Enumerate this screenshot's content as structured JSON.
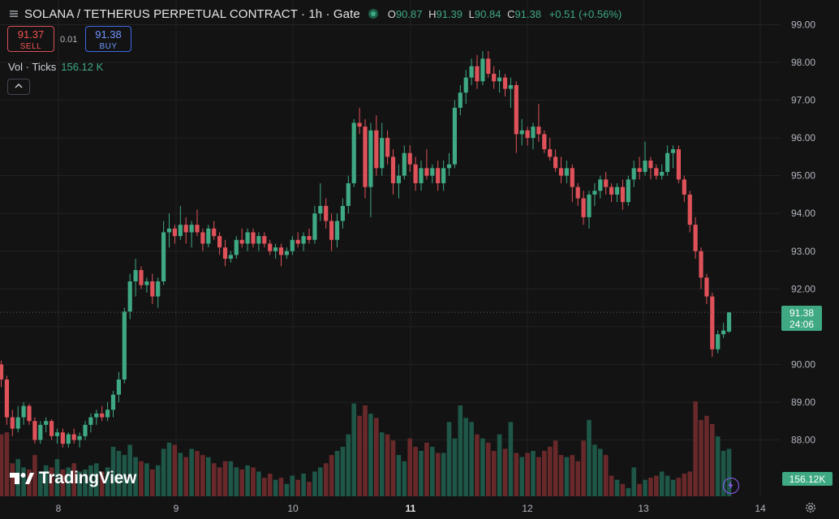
{
  "header": {
    "title": "SOLANA / TETHERUS PERPETUAL CONTRACT · 1h · Gate",
    "ohlc": {
      "o_label": "O",
      "o_value": "90.87",
      "h_label": "H",
      "h_value": "91.39",
      "l_label": "L",
      "l_value": "90.84",
      "c_label": "C",
      "c_value": "91.38",
      "change": "+0.51 (+0.56%)"
    }
  },
  "trade": {
    "sell_price": "91.37",
    "sell_label": "SELL",
    "spread": "0.01",
    "buy_price": "91.38",
    "buy_label": "BUY"
  },
  "volume_legend": {
    "label": "Vol · Ticks",
    "value": "156.12 K"
  },
  "branding": {
    "logo_text": "TradingView"
  },
  "colors": {
    "up": "#3ea983",
    "down": "#e0525a",
    "background": "#131313",
    "grid": "#222222"
  },
  "chart_data": {
    "type": "candlestick",
    "interval": "1h",
    "y_axis": {
      "ticks": [
        88.0,
        89.0,
        90.0,
        91.0,
        92.0,
        93.0,
        94.0,
        95.0,
        96.0,
        97.0,
        98.0,
        99.0
      ],
      "range": [
        87.3,
        99.3
      ],
      "side": "right"
    },
    "x_axis": {
      "ticks": [
        "8",
        "9",
        "10",
        "11",
        "12",
        "13",
        "14"
      ],
      "bold_tick": "11"
    },
    "last_price": {
      "value": 91.38,
      "label": "91.38",
      "countdown": "24:06"
    },
    "volume": {
      "last_label": "156.12K",
      "max_value": 330
    },
    "candles": [
      [
        90.0,
        90.1,
        89.4,
        89.6
      ],
      [
        89.6,
        89.7,
        88.4,
        88.6
      ],
      [
        88.6,
        88.8,
        88.1,
        88.3
      ],
      [
        88.3,
        88.9,
        88.2,
        88.6
      ],
      [
        88.6,
        89.0,
        88.4,
        88.9
      ],
      [
        88.9,
        88.95,
        88.4,
        88.5
      ],
      [
        88.5,
        88.6,
        87.9,
        88.0
      ],
      [
        88.0,
        88.5,
        87.9,
        88.4
      ],
      [
        88.4,
        88.6,
        88.2,
        88.5
      ],
      [
        88.5,
        88.55,
        88.0,
        88.1
      ],
      [
        88.1,
        88.3,
        87.9,
        88.2
      ],
      [
        88.2,
        88.3,
        87.8,
        87.9
      ],
      [
        87.9,
        88.2,
        87.8,
        88.15
      ],
      [
        88.15,
        88.3,
        87.9,
        88.0
      ],
      [
        88.0,
        88.2,
        87.8,
        88.1
      ],
      [
        88.1,
        88.5,
        88.0,
        88.4
      ],
      [
        88.4,
        88.7,
        88.2,
        88.6
      ],
      [
        88.6,
        88.8,
        88.4,
        88.7
      ],
      [
        88.7,
        88.9,
        88.5,
        88.6
      ],
      [
        88.6,
        89.0,
        88.5,
        88.8
      ],
      [
        88.8,
        89.3,
        88.6,
        89.2
      ],
      [
        89.2,
        89.8,
        89.0,
        89.6
      ],
      [
        89.6,
        91.5,
        89.5,
        91.4
      ],
      [
        91.4,
        92.4,
        91.2,
        92.2
      ],
      [
        92.2,
        92.8,
        91.8,
        92.5
      ],
      [
        92.5,
        92.6,
        92.0,
        92.1
      ],
      [
        92.1,
        92.3,
        91.9,
        92.2
      ],
      [
        92.2,
        92.4,
        91.6,
        91.8
      ],
      [
        91.8,
        92.3,
        91.5,
        92.2
      ],
      [
        92.2,
        93.8,
        92.1,
        93.5
      ],
      [
        93.5,
        94.0,
        93.1,
        93.6
      ],
      [
        93.6,
        93.7,
        93.2,
        93.4
      ],
      [
        93.4,
        94.2,
        93.3,
        93.7
      ],
      [
        93.7,
        93.9,
        93.2,
        93.5
      ],
      [
        93.5,
        93.8,
        93.1,
        93.7
      ],
      [
        93.7,
        94.1,
        93.4,
        93.5
      ],
      [
        93.5,
        93.6,
        93.0,
        93.2
      ],
      [
        93.2,
        93.7,
        93.1,
        93.6
      ],
      [
        93.6,
        93.8,
        93.3,
        93.4
      ],
      [
        93.4,
        93.5,
        92.9,
        93.1
      ],
      [
        93.1,
        93.3,
        92.6,
        92.8
      ],
      [
        92.8,
        93.0,
        92.7,
        92.9
      ],
      [
        92.9,
        93.4,
        92.8,
        93.3
      ],
      [
        93.3,
        93.6,
        93.1,
        93.2
      ],
      [
        93.2,
        93.6,
        93.0,
        93.5
      ],
      [
        93.5,
        93.6,
        93.1,
        93.2
      ],
      [
        93.2,
        93.5,
        93.0,
        93.4
      ],
      [
        93.4,
        93.5,
        93.1,
        93.2
      ],
      [
        93.2,
        93.3,
        92.9,
        93.0
      ],
      [
        93.0,
        93.2,
        92.8,
        93.1
      ],
      [
        93.1,
        93.2,
        92.6,
        92.9
      ],
      [
        92.9,
        93.1,
        92.8,
        93.0
      ],
      [
        93.0,
        93.4,
        92.9,
        93.3
      ],
      [
        93.3,
        93.5,
        93.1,
        93.2
      ],
      [
        93.2,
        93.5,
        93.0,
        93.4
      ],
      [
        93.4,
        93.6,
        93.2,
        93.3
      ],
      [
        93.3,
        94.2,
        93.2,
        94.0
      ],
      [
        94.0,
        94.8,
        93.8,
        94.2
      ],
      [
        94.2,
        94.4,
        93.6,
        93.8
      ],
      [
        93.8,
        94.0,
        93.0,
        93.3
      ],
      [
        93.3,
        94.0,
        93.1,
        93.8
      ],
      [
        93.8,
        94.4,
        93.6,
        94.2
      ],
      [
        94.2,
        95.0,
        94.0,
        94.8
      ],
      [
        94.8,
        96.5,
        94.7,
        96.4
      ],
      [
        96.4,
        96.8,
        96.1,
        96.3
      ],
      [
        96.3,
        96.5,
        94.4,
        94.7
      ],
      [
        94.7,
        96.4,
        93.9,
        96.2
      ],
      [
        96.2,
        96.6,
        95.0,
        95.2
      ],
      [
        95.2,
        96.4,
        95.0,
        96.0
      ],
      [
        96.0,
        96.2,
        95.3,
        95.5
      ],
      [
        95.5,
        95.7,
        94.5,
        94.8
      ],
      [
        94.8,
        95.3,
        94.4,
        95.0
      ],
      [
        95.0,
        95.8,
        94.9,
        95.6
      ],
      [
        95.6,
        95.8,
        95.1,
        95.3
      ],
      [
        95.3,
        95.5,
        94.6,
        94.8
      ],
      [
        94.8,
        95.4,
        94.6,
        95.2
      ],
      [
        95.2,
        95.7,
        94.9,
        95.0
      ],
      [
        95.0,
        95.3,
        94.8,
        95.2
      ],
      [
        95.2,
        95.4,
        94.6,
        94.8
      ],
      [
        94.8,
        95.4,
        94.6,
        95.2
      ],
      [
        95.2,
        95.6,
        95.0,
        95.3
      ],
      [
        95.3,
        97.0,
        95.2,
        96.8
      ],
      [
        96.8,
        97.4,
        96.6,
        97.2
      ],
      [
        97.2,
        97.8,
        96.9,
        97.6
      ],
      [
        97.6,
        98.1,
        97.4,
        97.9
      ],
      [
        97.9,
        98.2,
        97.3,
        97.5
      ],
      [
        97.5,
        98.3,
        97.4,
        98.1
      ],
      [
        98.1,
        98.3,
        97.6,
        97.7
      ],
      [
        97.7,
        97.9,
        97.3,
        97.5
      ],
      [
        97.5,
        97.8,
        97.2,
        97.6
      ],
      [
        97.6,
        97.7,
        97.1,
        97.3
      ],
      [
        97.3,
        97.6,
        96.8,
        97.4
      ],
      [
        97.4,
        97.5,
        95.6,
        96.1
      ],
      [
        96.1,
        96.5,
        95.8,
        96.2
      ],
      [
        96.2,
        96.3,
        95.8,
        96.0
      ],
      [
        96.0,
        96.4,
        95.7,
        96.3
      ],
      [
        96.3,
        96.9,
        95.9,
        96.1
      ],
      [
        96.1,
        96.2,
        95.6,
        95.7
      ],
      [
        95.7,
        96.0,
        95.4,
        95.5
      ],
      [
        95.5,
        95.7,
        95.1,
        95.2
      ],
      [
        95.2,
        95.5,
        94.8,
        95.0
      ],
      [
        95.0,
        95.4,
        94.8,
        95.2
      ],
      [
        95.2,
        95.3,
        94.3,
        94.7
      ],
      [
        94.7,
        94.8,
        94.2,
        94.4
      ],
      [
        94.4,
        94.6,
        93.7,
        93.9
      ],
      [
        93.9,
        94.6,
        93.6,
        94.5
      ],
      [
        94.5,
        94.8,
        94.2,
        94.6
      ],
      [
        94.6,
        95.0,
        94.4,
        94.9
      ],
      [
        94.9,
        95.1,
        94.5,
        94.7
      ],
      [
        94.7,
        94.8,
        94.3,
        94.5
      ],
      [
        94.5,
        94.8,
        94.3,
        94.7
      ],
      [
        94.7,
        94.9,
        94.1,
        94.3
      ],
      [
        94.3,
        95.0,
        94.2,
        94.9
      ],
      [
        94.9,
        95.4,
        94.7,
        95.2
      ],
      [
        95.2,
        95.5,
        94.9,
        95.1
      ],
      [
        95.1,
        95.9,
        95.0,
        95.4
      ],
      [
        95.4,
        95.5,
        94.9,
        95.2
      ],
      [
        95.2,
        95.3,
        94.9,
        95.0
      ],
      [
        95.0,
        95.3,
        94.9,
        95.1
      ],
      [
        95.1,
        95.8,
        95.0,
        95.6
      ],
      [
        95.6,
        95.8,
        95.2,
        95.7
      ],
      [
        95.7,
        95.8,
        94.8,
        94.9
      ],
      [
        94.9,
        95.0,
        94.3,
        94.5
      ],
      [
        94.5,
        94.6,
        93.5,
        93.7
      ],
      [
        93.7,
        93.9,
        92.8,
        93.0
      ],
      [
        93.0,
        93.1,
        92.0,
        92.3
      ],
      [
        92.3,
        92.4,
        91.6,
        91.8
      ],
      [
        91.8,
        91.9,
        90.2,
        90.4
      ],
      [
        90.4,
        90.9,
        90.3,
        90.8
      ],
      [
        90.8,
        91.1,
        90.7,
        90.9
      ],
      [
        90.87,
        91.39,
        90.84,
        91.38
      ]
    ],
    "volumes": [
      150,
      155,
      80,
      90,
      70,
      65,
      100,
      60,
      75,
      70,
      90,
      65,
      70,
      80,
      60,
      65,
      75,
      80,
      60,
      70,
      120,
      110,
      100,
      125,
      95,
      85,
      80,
      65,
      75,
      115,
      130,
      125,
      105,
      95,
      115,
      110,
      100,
      95,
      80,
      70,
      85,
      85,
      70,
      65,
      75,
      70,
      60,
      45,
      55,
      40,
      45,
      30,
      50,
      40,
      55,
      35,
      60,
      70,
      80,
      100,
      110,
      120,
      150,
      225,
      195,
      220,
      200,
      190,
      155,
      150,
      135,
      100,
      85,
      140,
      120,
      110,
      130,
      120,
      105,
      105,
      180,
      140,
      220,
      190,
      180,
      150,
      140,
      130,
      110,
      150,
      115,
      180,
      105,
      95,
      105,
      110,
      95,
      110,
      120,
      135,
      100,
      95,
      100,
      85,
      135,
      185,
      125,
      115,
      100,
      50,
      40,
      30,
      20,
      70,
      30,
      40,
      45,
      50,
      60,
      50,
      40,
      45,
      55,
      60,
      230,
      185,
      195,
      175,
      145,
      110,
      115
    ]
  }
}
